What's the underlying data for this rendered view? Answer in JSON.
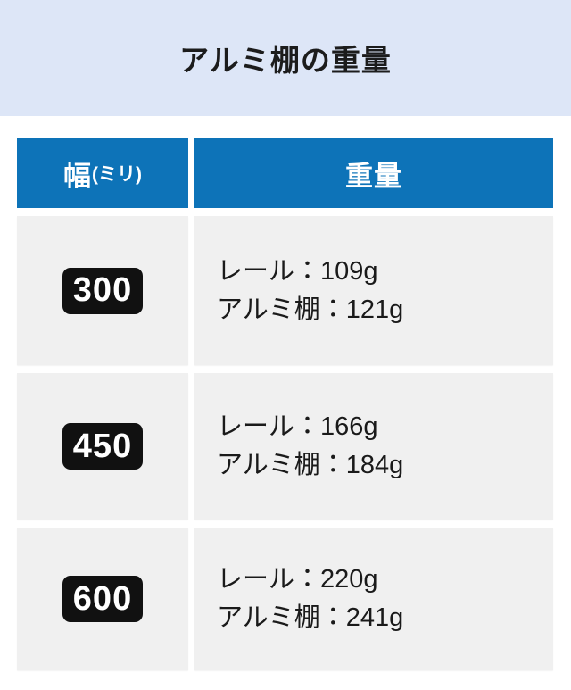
{
  "page": {
    "title": "アルミ棚の重量"
  },
  "colors": {
    "banner_bg": "#dde6f7",
    "header_bg": "#0d73b8",
    "header_text": "#ffffff",
    "row_bg": "#f0f0f0",
    "badge_bg": "#111111",
    "badge_text": "#ffffff",
    "body_text": "#1a1a1a"
  },
  "table": {
    "columns": [
      {
        "label": "幅",
        "unit": "(ミリ)"
      },
      {
        "label": "重量"
      }
    ],
    "rows": [
      {
        "width_mm": "300",
        "lines": [
          "レール：109g",
          "アルミ棚：121g"
        ]
      },
      {
        "width_mm": "450",
        "lines": [
          "レール：166g",
          "アルミ棚：184g"
        ]
      },
      {
        "width_mm": "600",
        "lines": [
          "レール：220g",
          "アルミ棚：241g"
        ]
      }
    ]
  }
}
